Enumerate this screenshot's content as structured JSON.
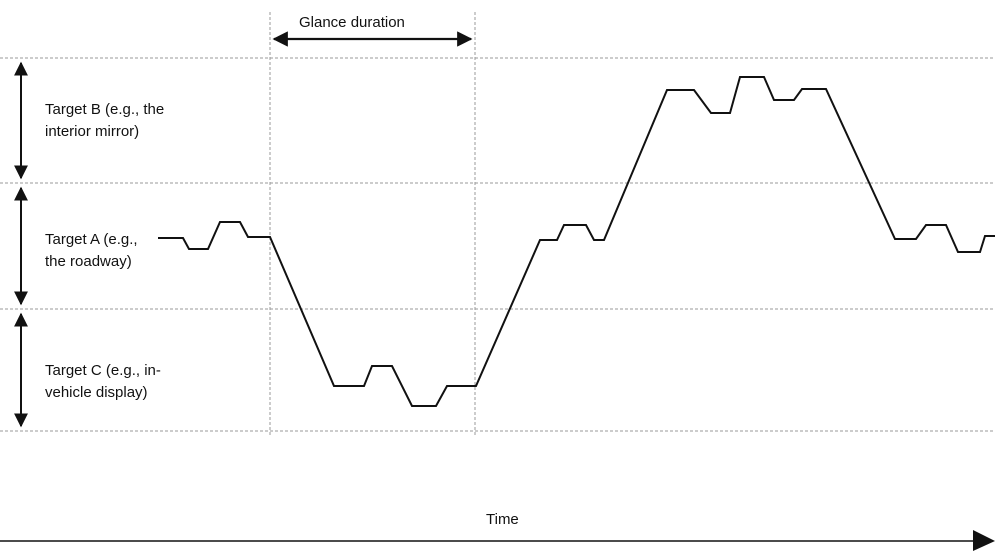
{
  "diagram": {
    "glance_label": "Glance duration",
    "target_b_label": "Target  B (e.g., the\ninterior mirror)",
    "target_a_label": "Target A (e.g.,\nthe roadway)",
    "target_c_label": "Target C  (e.g., in-\nvehicle display)",
    "time_label": "Time"
  },
  "colors": {
    "line": "#111111",
    "grid": "#9a9a9a",
    "background": "#ffffff"
  }
}
